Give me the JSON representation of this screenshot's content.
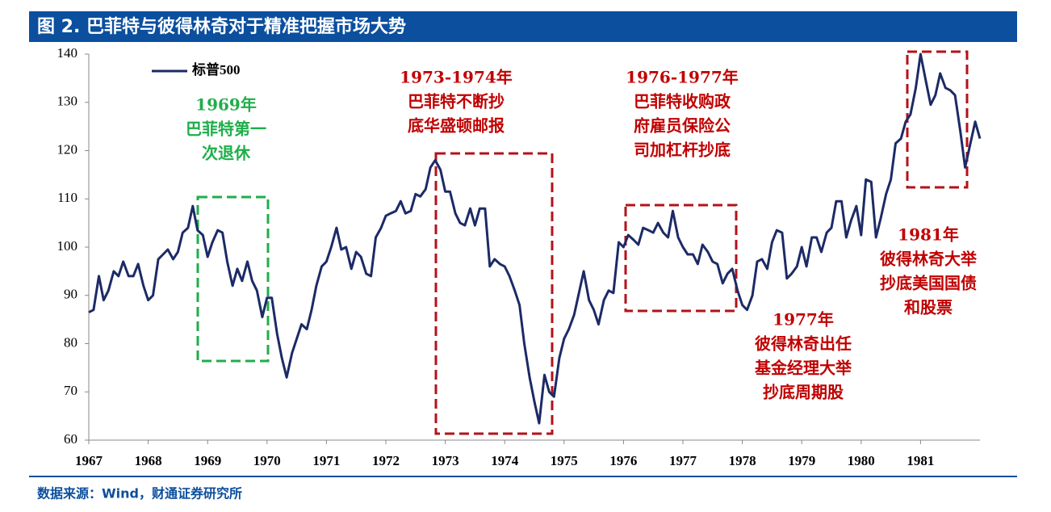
{
  "chart_data": {
    "type": "line",
    "title": "图 2. 巴菲特与彼得林奇对于精准把握市场大势",
    "source": "数据来源：Wind，财通证券研究所",
    "x": [
      1967,
      1967.08,
      1967.17,
      1967.25,
      1967.33,
      1967.42,
      1967.5,
      1967.58,
      1967.67,
      1967.75,
      1967.83,
      1967.92,
      1968,
      1968.08,
      1968.17,
      1968.25,
      1968.33,
      1968.42,
      1968.5,
      1968.58,
      1968.67,
      1968.75,
      1968.83,
      1968.92,
      1969,
      1969.08,
      1969.17,
      1969.25,
      1969.33,
      1969.42,
      1969.5,
      1969.58,
      1969.67,
      1969.75,
      1969.83,
      1969.92,
      1970,
      1970.08,
      1970.17,
      1970.25,
      1970.33,
      1970.42,
      1970.5,
      1970.58,
      1970.67,
      1970.75,
      1970.83,
      1970.92,
      1971,
      1971.08,
      1971.17,
      1971.25,
      1971.33,
      1971.42,
      1971.5,
      1971.58,
      1971.67,
      1971.75,
      1971.83,
      1971.92,
      1972,
      1972.08,
      1972.17,
      1972.25,
      1972.33,
      1972.42,
      1972.5,
      1972.58,
      1972.67,
      1972.75,
      1972.83,
      1972.92,
      1973,
      1973.08,
      1973.17,
      1973.25,
      1973.33,
      1973.42,
      1973.5,
      1973.58,
      1973.67,
      1973.75,
      1973.83,
      1973.92,
      1974,
      1974.08,
      1974.17,
      1974.25,
      1974.33,
      1974.42,
      1974.5,
      1974.58,
      1974.67,
      1974.75,
      1974.83,
      1974.92,
      1975,
      1975.08,
      1975.17,
      1975.25,
      1975.33,
      1975.42,
      1975.5,
      1975.58,
      1975.67,
      1975.75,
      1975.83,
      1975.92,
      1976,
      1976.08,
      1976.17,
      1976.25,
      1976.33,
      1976.42,
      1976.5,
      1976.58,
      1976.67,
      1976.75,
      1976.83,
      1976.92,
      1977,
      1977.08,
      1977.17,
      1977.25,
      1977.33,
      1977.42,
      1977.5,
      1977.58,
      1977.67,
      1977.75,
      1977.83,
      1977.92,
      1978,
      1978.08,
      1978.17,
      1978.25,
      1978.33,
      1978.42,
      1978.5,
      1978.58,
      1978.67,
      1978.75,
      1978.83,
      1978.92,
      1979,
      1979.08,
      1979.17,
      1979.25,
      1979.33,
      1979.42,
      1979.5,
      1979.58,
      1979.67,
      1979.75,
      1979.83,
      1979.92,
      1980,
      1980.08,
      1980.17,
      1980.25,
      1980.33,
      1980.42,
      1980.5,
      1980.58,
      1980.67,
      1980.75,
      1980.83,
      1980.92,
      1981,
      1981.08,
      1981.17,
      1981.25,
      1981.33,
      1981.42,
      1981.5,
      1981.58,
      1981.67,
      1981.75,
      1981.83,
      1981.92,
      1982
    ],
    "series": [
      {
        "name": "标普500",
        "color": "#1c2a66",
        "values": [
          86.5,
          87,
          94,
          89,
          91,
          95,
          94,
          97,
          94,
          94,
          96.5,
          92,
          89,
          90,
          97.5,
          98.5,
          99.5,
          97.5,
          99,
          103,
          104,
          108.5,
          103.5,
          102.5,
          98,
          101,
          103.5,
          103,
          97,
          92,
          95.5,
          93,
          97,
          93,
          91,
          85.5,
          89.5,
          89.5,
          82,
          77,
          73,
          78,
          81,
          84,
          83,
          87,
          92,
          96,
          97,
          100,
          104,
          99.5,
          100,
          95.5,
          99,
          98,
          94.5,
          94,
          102,
          104,
          106.5,
          107,
          107.5,
          109.5,
          107,
          107.5,
          111,
          110.5,
          112,
          116.5,
          118,
          116,
          111.5,
          111.5,
          107,
          105,
          104.5,
          108,
          104.5,
          108,
          108,
          96,
          97.5,
          96.5,
          96,
          94,
          91,
          88,
          80,
          73,
          68,
          63.5,
          73.5,
          70,
          69,
          77,
          81,
          83,
          86,
          90.5,
          95,
          89,
          87,
          84,
          89,
          91,
          90.5,
          101,
          100,
          102.5,
          101.5,
          100.5,
          104,
          103.5,
          103,
          105,
          103,
          102,
          107.5,
          102,
          100,
          98.5,
          98.5,
          96.5,
          100.5,
          99,
          97,
          96.5,
          92.5,
          94.5,
          95.5,
          91,
          88,
          87,
          90,
          97,
          97.5,
          95.5,
          101,
          103.5,
          103,
          93.5,
          94.5,
          96,
          100,
          96,
          102,
          102,
          99,
          103,
          104,
          109.5,
          109.5,
          102,
          105.5,
          108.5,
          102.5,
          114,
          113.5,
          102,
          106,
          111,
          114,
          121.5,
          122.5,
          126,
          127.5,
          133,
          140,
          135,
          129.5,
          131.5,
          136,
          133,
          132.5,
          131.5,
          124,
          116.5,
          121,
          126,
          122.5
        ]
      }
    ],
    "xlim": [
      1967,
      1982
    ],
    "xticks": [
      1967,
      1968,
      1969,
      1970,
      1971,
      1972,
      1973,
      1974,
      1975,
      1976,
      1977,
      1978,
      1979,
      1980,
      1981
    ],
    "ylim": [
      60,
      140
    ],
    "yticks": [
      60,
      70,
      80,
      90,
      100,
      110,
      120,
      130,
      140
    ],
    "legend": "upper left",
    "annotations": [
      {
        "lines": [
          "1969年",
          "巴菲特第一",
          "次退休"
        ],
        "color": "#1fae4a"
      },
      {
        "lines": [
          "1973-1974年",
          "巴菲特不断抄",
          "底华盛顿邮报"
        ],
        "color": "#c00000"
      },
      {
        "lines": [
          "1976-1977年",
          "巴菲特收购政",
          "府雇员保险公",
          "司加杠杆抄底"
        ],
        "color": "#c00000"
      },
      {
        "lines": [
          "1977年",
          "彼得林奇出任",
          "基金经理大举",
          "抄底周期股"
        ],
        "color": "#c00000"
      },
      {
        "lines": [
          "1981年",
          "彼得林奇大举",
          "抄底美国国债",
          "和股票"
        ],
        "color": "#c00000"
      }
    ]
  }
}
